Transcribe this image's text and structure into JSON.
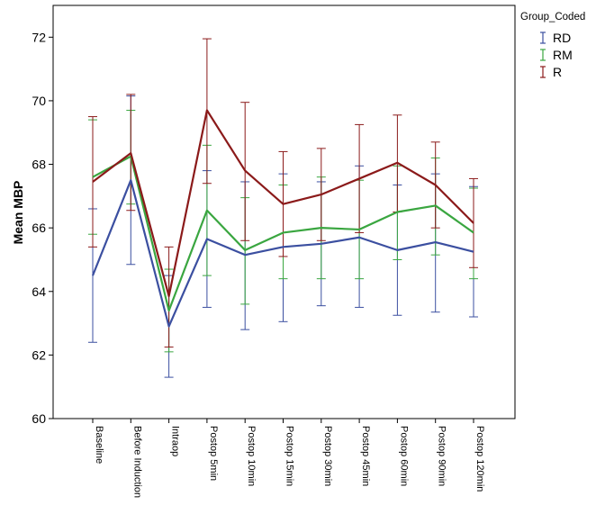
{
  "chart_data": {
    "type": "line",
    "ylabel": "Mean MBP",
    "xlabel": "",
    "ylim": [
      60,
      73
    ],
    "yticks": [
      60,
      62,
      64,
      66,
      68,
      70,
      72
    ],
    "categories": [
      "Baseline",
      "Before Induction",
      "Intraop",
      "Postop 5min",
      "Postop 10min",
      "Postop 15min",
      "Postop 30min",
      "Postop 45min",
      "Postop 60min",
      "Postop 90min",
      "Postop 120min"
    ],
    "legend": {
      "title": "Group_Coded",
      "position": "top-right"
    },
    "error_bars": true,
    "grid": false,
    "series": [
      {
        "name": "RD",
        "color": "#3b4fa0",
        "values": [
          64.5,
          67.5,
          62.9,
          65.65,
          65.15,
          65.4,
          65.5,
          65.7,
          65.3,
          65.55,
          65.25
        ],
        "lower": [
          62.4,
          64.85,
          61.3,
          63.5,
          62.8,
          63.05,
          63.55,
          63.5,
          63.25,
          63.35,
          63.2
        ],
        "upper": [
          66.6,
          70.15,
          64.5,
          67.8,
          67.45,
          67.7,
          67.45,
          67.95,
          67.35,
          67.7,
          67.3
        ]
      },
      {
        "name": "RM",
        "color": "#3aa640",
        "values": [
          67.6,
          68.25,
          63.4,
          66.55,
          65.3,
          65.85,
          66.0,
          65.95,
          66.5,
          66.7,
          65.85
        ],
        "lower": [
          65.8,
          66.75,
          62.1,
          64.5,
          63.6,
          64.4,
          64.4,
          64.4,
          65.0,
          65.15,
          64.4
        ],
        "upper": [
          69.4,
          69.7,
          64.7,
          68.6,
          66.95,
          67.35,
          67.6,
          67.5,
          67.95,
          68.2,
          67.25
        ]
      },
      {
        "name": "R",
        "color": "#8b1a1a",
        "values": [
          67.45,
          68.35,
          63.85,
          69.7,
          67.8,
          66.75,
          67.05,
          67.55,
          68.05,
          67.35,
          66.15
        ],
        "lower": [
          65.4,
          66.55,
          62.25,
          67.4,
          65.6,
          65.1,
          65.6,
          65.85,
          66.5,
          66.0,
          64.75
        ],
        "upper": [
          69.5,
          70.2,
          65.4,
          71.95,
          69.95,
          68.4,
          68.5,
          69.25,
          69.55,
          68.7,
          67.55
        ]
      }
    ]
  }
}
